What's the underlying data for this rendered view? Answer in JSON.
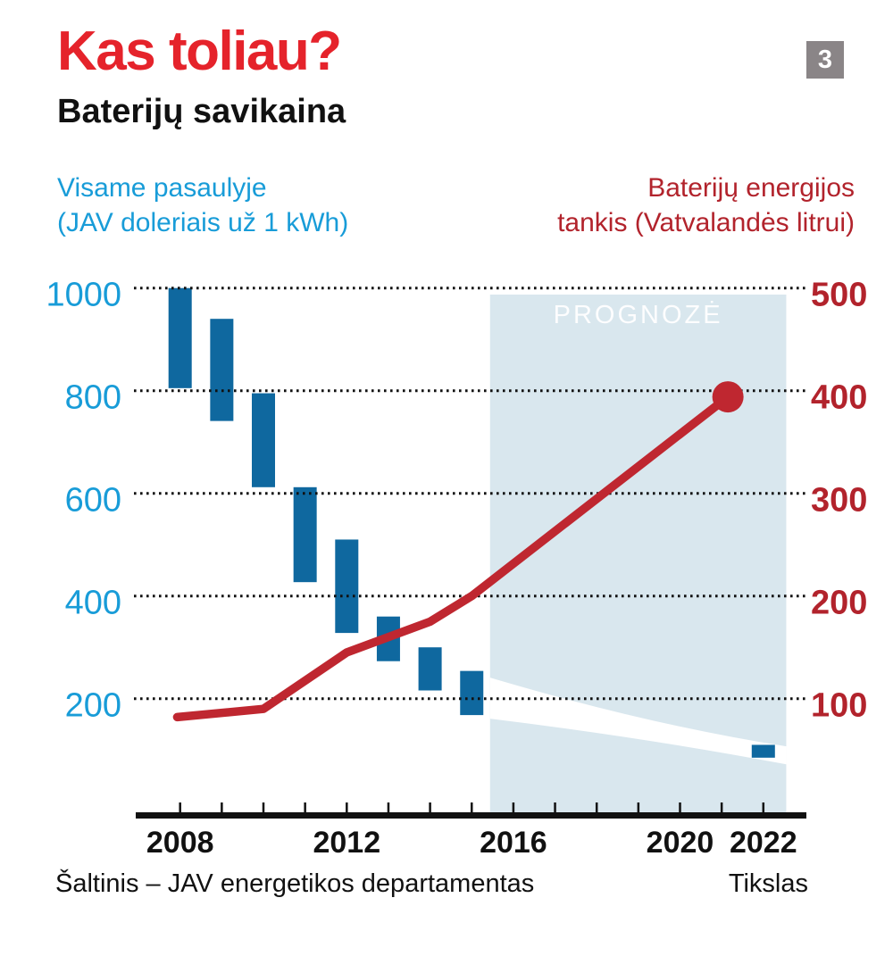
{
  "header": {
    "title": "Kas toliau?",
    "subtitle": "Baterijų savikaina",
    "badge": "3"
  },
  "footer": {
    "source": "Šaltinis – JAV energetikos departamentas",
    "target_label": "Tikslas"
  },
  "colors": {
    "title_red": "#e5232b",
    "line_red": "#bf2730",
    "dark_red": "#b2232c",
    "blue": "#189cd8",
    "bar_blue": "#0f689f",
    "forecast_bg": "#d9e7ee",
    "badge_gray": "#8a8587",
    "ink": "#111111",
    "band_white": "#ffffff"
  },
  "chart_data": {
    "type": "combo: floating range bars (battery cost, left axis) + line (energy density, right axis)",
    "title": "Baterijų savikaina",
    "x_axis": {
      "label_years": [
        2008,
        2012,
        2016,
        2020,
        2022
      ],
      "tick_from": 2008,
      "tick_to": 2022
    },
    "left_axis": {
      "title_lines": [
        "Visame pasaulyje",
        "(JAV doleriais už 1 kWh)"
      ],
      "ticks": [
        1000,
        800,
        600,
        400,
        200
      ],
      "range": [
        0,
        1050
      ]
    },
    "right_axis": {
      "title_lines": [
        "Baterijų energijos",
        "tankis (Vatvalandės litrui)"
      ],
      "ticks": [
        500,
        400,
        300,
        200,
        100
      ],
      "range": [
        0,
        525
      ]
    },
    "grid": "dotted horizontal gridlines",
    "cost_bars": [
      {
        "year": 2008,
        "high": 1000,
        "low": 805
      },
      {
        "year": 2009,
        "high": 940,
        "low": 741
      },
      {
        "year": 2010,
        "high": 795,
        "low": 612
      },
      {
        "year": 2011,
        "high": 612,
        "low": 427
      },
      {
        "year": 2012,
        "high": 510,
        "low": 328
      },
      {
        "year": 2013,
        "high": 360,
        "low": 273
      },
      {
        "year": 2014,
        "high": 300,
        "low": 216
      },
      {
        "year": 2015,
        "high": 254,
        "low": 168
      }
    ],
    "target_bar": {
      "year": 2022,
      "high": 110,
      "low": 85
    },
    "density_line": {
      "points": [
        [
          2007.93,
          82
        ],
        [
          2010,
          90
        ],
        [
          2012,
          145
        ],
        [
          2014,
          175
        ],
        [
          2015,
          200
        ],
        [
          2021.15,
          394
        ]
      ],
      "end_dot_radius": 17.5
    },
    "forecast_region": {
      "label": "PROGNOZĖ",
      "start_year": 2015.44,
      "end_year": 2022.55
    },
    "forecast_band": {
      "years": [
        2015.44,
        2019.1,
        2022.55
      ],
      "high": [
        241,
        162,
        107
      ],
      "low": [
        161,
        120,
        72
      ]
    }
  }
}
